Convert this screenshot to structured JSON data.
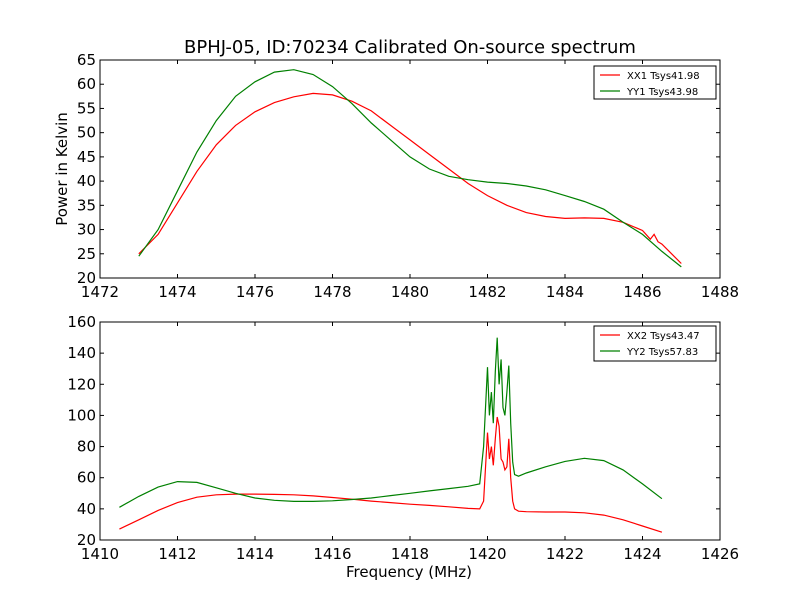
{
  "chart_data": [
    {
      "type": "line",
      "title": "BPHJ-05, ID:70234 Calibrated On-source spectrum",
      "xlabel": "",
      "ylabel": "Power in Kelvin",
      "xlim": [
        1472,
        1488
      ],
      "ylim": [
        20,
        65
      ],
      "x_ticks": [
        1472,
        1474,
        1476,
        1478,
        1480,
        1482,
        1484,
        1486,
        1488
      ],
      "y_ticks": [
        20,
        25,
        30,
        35,
        40,
        45,
        50,
        55,
        60,
        65
      ],
      "grid": false,
      "legend_position": "top-right",
      "series": [
        {
          "name": "XX1 Tsys41.98",
          "color": "#ff0000",
          "x": [
            1473.0,
            1473.5,
            1474.0,
            1474.5,
            1475.0,
            1475.5,
            1476.0,
            1476.5,
            1477.0,
            1477.5,
            1478.0,
            1478.5,
            1479.0,
            1479.5,
            1480.0,
            1480.5,
            1481.0,
            1481.5,
            1482.0,
            1482.5,
            1483.0,
            1483.5,
            1484.0,
            1484.5,
            1485.0,
            1485.5,
            1486.0,
            1486.2,
            1486.3,
            1486.4,
            1486.5,
            1487.0
          ],
          "y": [
            25.0,
            29.0,
            35.5,
            42.0,
            47.5,
            51.5,
            54.3,
            56.2,
            57.4,
            58.1,
            57.8,
            56.5,
            54.5,
            51.5,
            48.5,
            45.5,
            42.5,
            39.5,
            37.0,
            35.0,
            33.5,
            32.7,
            32.3,
            32.4,
            32.3,
            31.5,
            29.8,
            28.0,
            29.0,
            27.5,
            27.0,
            23.0
          ]
        },
        {
          "name": "YY1 Tsys43.98",
          "color": "#008000",
          "x": [
            1473.0,
            1473.5,
            1474.0,
            1474.5,
            1475.0,
            1475.5,
            1476.0,
            1476.5,
            1477.0,
            1477.5,
            1478.0,
            1478.5,
            1479.0,
            1479.5,
            1480.0,
            1480.5,
            1481.0,
            1481.5,
            1482.0,
            1482.5,
            1483.0,
            1483.5,
            1484.0,
            1484.5,
            1485.0,
            1485.5,
            1486.0,
            1486.5,
            1487.0
          ],
          "y": [
            24.5,
            30.0,
            38.0,
            46.0,
            52.5,
            57.5,
            60.5,
            62.5,
            63.0,
            62.0,
            59.5,
            56.0,
            52.0,
            48.5,
            45.0,
            42.5,
            41.0,
            40.3,
            39.8,
            39.5,
            39.0,
            38.2,
            37.0,
            35.8,
            34.2,
            31.5,
            29.0,
            25.5,
            22.3
          ]
        }
      ]
    },
    {
      "type": "line",
      "title": "",
      "xlabel": "Frequency (MHz)",
      "ylabel": "",
      "xlim": [
        1410,
        1426
      ],
      "ylim": [
        20,
        160
      ],
      "x_ticks": [
        1410,
        1412,
        1414,
        1416,
        1418,
        1420,
        1422,
        1424,
        1426
      ],
      "y_ticks": [
        20,
        40,
        60,
        80,
        100,
        120,
        140,
        160
      ],
      "grid": false,
      "legend_position": "top-right",
      "series": [
        {
          "name": "XX2 Tsys43.47",
          "color": "#ff0000",
          "x": [
            1410.5,
            1411.0,
            1411.5,
            1412.0,
            1412.5,
            1413.0,
            1413.5,
            1414.0,
            1414.5,
            1415.0,
            1415.5,
            1416.0,
            1416.5,
            1417.0,
            1417.5,
            1418.0,
            1418.5,
            1419.0,
            1419.5,
            1419.8,
            1419.9,
            1420.0,
            1420.05,
            1420.1,
            1420.15,
            1420.2,
            1420.25,
            1420.3,
            1420.35,
            1420.4,
            1420.45,
            1420.5,
            1420.55,
            1420.6,
            1420.65,
            1420.7,
            1420.8,
            1421.0,
            1421.5,
            1422.0,
            1422.5,
            1423.0,
            1423.5,
            1424.0,
            1424.5
          ],
          "y": [
            27,
            33,
            39,
            44,
            47.5,
            49,
            49.5,
            49.5,
            49.3,
            49,
            48.3,
            47.3,
            46.2,
            45,
            44,
            43,
            42.2,
            41.3,
            40.3,
            40,
            45,
            89,
            72,
            80,
            68,
            85,
            99,
            93,
            72,
            70,
            65,
            67,
            85,
            60,
            45,
            40,
            38.5,
            38.2,
            38,
            38,
            37.5,
            36,
            33,
            29,
            25
          ]
        },
        {
          "name": "YY2 Tsys57.83",
          "color": "#008000",
          "x": [
            1410.5,
            1411.0,
            1411.5,
            1412.0,
            1412.5,
            1413.0,
            1413.5,
            1414.0,
            1414.5,
            1415.0,
            1415.5,
            1416.0,
            1416.5,
            1417.0,
            1417.5,
            1418.0,
            1418.5,
            1419.0,
            1419.5,
            1419.8,
            1419.9,
            1420.0,
            1420.05,
            1420.1,
            1420.15,
            1420.2,
            1420.25,
            1420.3,
            1420.35,
            1420.4,
            1420.45,
            1420.5,
            1420.55,
            1420.6,
            1420.65,
            1420.7,
            1420.8,
            1421.0,
            1421.5,
            1422.0,
            1422.5,
            1423.0,
            1423.5,
            1424.0,
            1424.5
          ],
          "y": [
            41,
            48,
            54,
            57.5,
            57,
            53.5,
            50,
            47,
            45.5,
            44.8,
            44.8,
            45.2,
            46,
            47,
            48.5,
            50,
            51.5,
            53,
            54.5,
            56,
            80,
            131,
            100,
            115,
            95,
            128,
            150,
            120,
            136,
            105,
            100,
            115,
            132,
            95,
            70,
            62,
            61,
            63,
            67,
            70.5,
            72.5,
            71,
            65,
            56,
            46.5
          ]
        }
      ]
    }
  ]
}
